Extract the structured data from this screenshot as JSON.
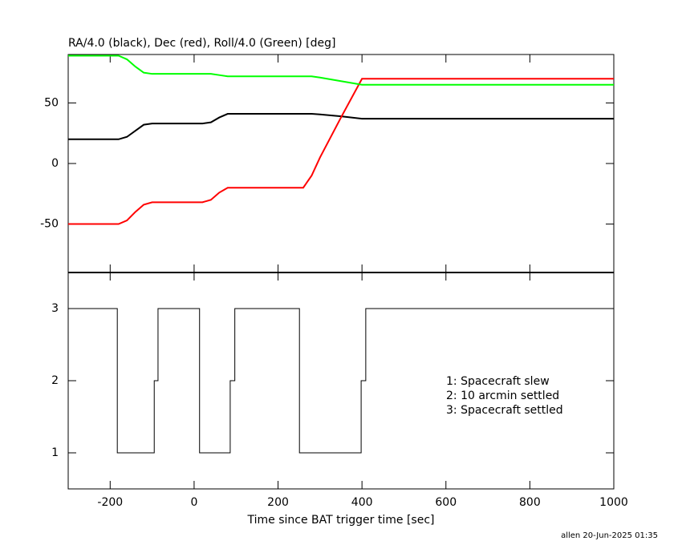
{
  "chart_data": [
    {
      "type": "line",
      "title": "RA/4.0 (black), Dec (red), Roll/4.0 (Green) [deg]",
      "x": [
        -300,
        -180,
        -160,
        -140,
        -120,
        -100,
        20,
        40,
        60,
        80,
        100,
        260,
        280,
        300,
        350,
        400,
        1000
      ],
      "series": [
        {
          "color": "#000000",
          "values": [
            20,
            20,
            22,
            27,
            32,
            33,
            33,
            34,
            38,
            41,
            41,
            41,
            41,
            40.5,
            39,
            37,
            37
          ]
        },
        {
          "color": "#ff0000",
          "values": [
            -50,
            -50,
            -47,
            -40,
            -34,
            -32,
            -32,
            -30,
            -24,
            -20,
            -20,
            -20,
            -10,
            5,
            38,
            70,
            70
          ]
        },
        {
          "color": "#00ff00",
          "values": [
            89,
            89,
            86,
            80,
            75,
            74,
            74,
            74,
            73,
            72,
            72,
            72,
            72,
            71,
            68,
            65,
            65
          ]
        }
      ],
      "xlim": [
        -300,
        1000
      ],
      "xticks": [
        -200,
        0,
        200,
        400,
        600,
        800,
        1000
      ],
      "ylim": [
        -90,
        90
      ],
      "yticks": [
        -50,
        0,
        50
      ]
    },
    {
      "type": "step",
      "x": [
        -300,
        -183,
        -95,
        -86,
        13,
        86,
        97,
        251,
        398,
        409,
        1000
      ],
      "values": [
        3,
        1,
        2,
        3,
        1,
        2,
        3,
        1,
        2,
        3,
        3
      ],
      "color": "#000000",
      "xlabel": "Time since BAT trigger time [sec]",
      "xlim": [
        -300,
        1000
      ],
      "xticks": [
        -200,
        0,
        200,
        400,
        600,
        800,
        1000
      ],
      "ylim": [
        0.5,
        3.5
      ],
      "yticks": [
        1,
        2,
        3
      ],
      "annotations": [
        "1: Spacecraft slew",
        "2: 10 arcmin settled",
        "3: Spacecraft settled"
      ],
      "footer": "allen 20-Jun-2025 01:35"
    }
  ]
}
